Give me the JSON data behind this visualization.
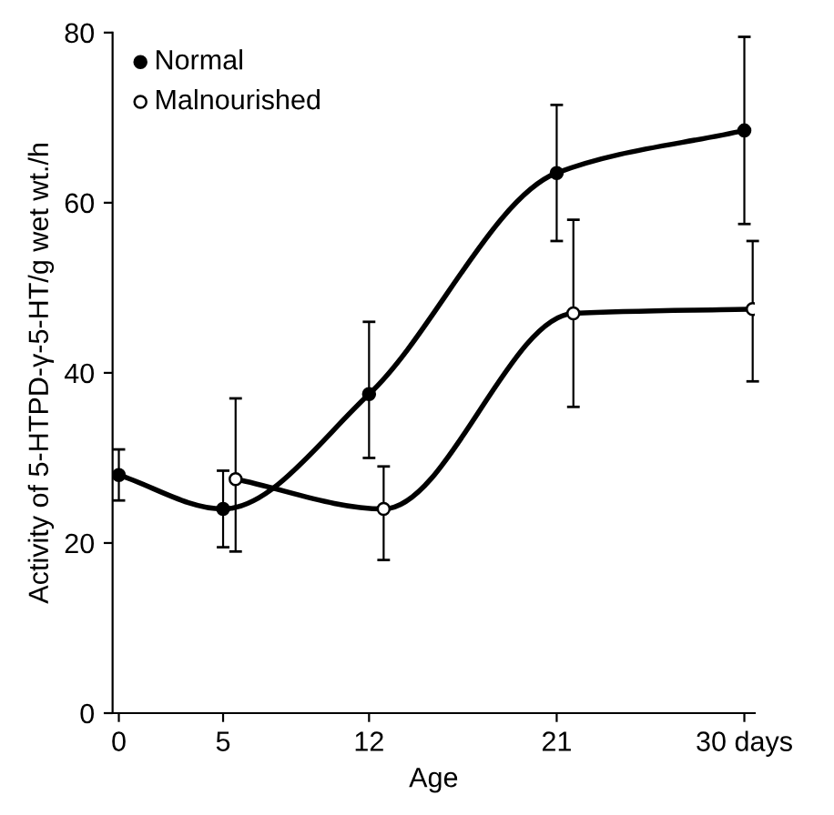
{
  "chart_data": {
    "type": "line",
    "xlabel": "Age",
    "ylabel": "Activity of 5-HTPD-γ-5-HT/g wet wt./h",
    "xlim": [
      -0.3,
      30.5
    ],
    "xticks": [
      0,
      5,
      12,
      21,
      {
        "value": 30,
        "label": "30 days"
      }
    ],
    "ylim": [
      0,
      80
    ],
    "yticks": [
      0,
      20,
      40,
      60,
      80
    ],
    "grid": false,
    "legend": "top left",
    "series": [
      {
        "name": "Normal",
        "color": "#000000",
        "marker": "circle",
        "x": [
          0,
          5,
          12,
          21,
          30
        ],
        "values": [
          28,
          24,
          37.5,
          63.5,
          68.5
        ],
        "errors": [
          [
            25,
            31
          ],
          [
            19.5,
            28.5
          ],
          [
            30,
            46
          ],
          [
            55.5,
            71.5
          ],
          [
            57.5,
            79.5
          ]
        ]
      },
      {
        "name": "Malnourished",
        "color": "#000000",
        "marker": "circle",
        "x": [
          5.6,
          12.7,
          21.8,
          30.4
        ],
        "values": [
          27.5,
          24,
          47,
          47.5
        ],
        "errors": [
          [
            19,
            37
          ],
          [
            18,
            29
          ],
          [
            36,
            58
          ],
          [
            39,
            55.5
          ]
        ]
      }
    ]
  }
}
